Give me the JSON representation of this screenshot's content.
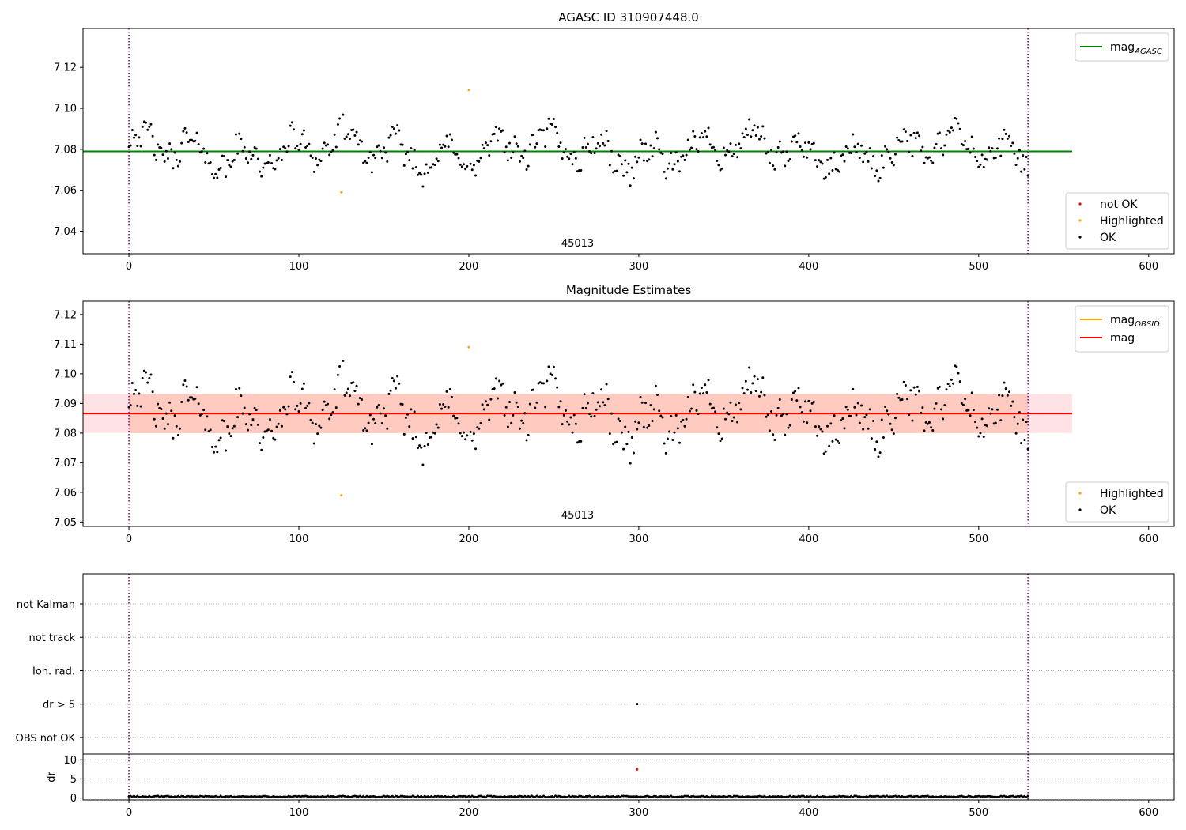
{
  "chart_data": [
    {
      "id": "agasc",
      "type": "scatter",
      "title": "AGASC ID 310907448.0",
      "xlim": [
        -27,
        615
      ],
      "ylim": [
        7.029,
        7.139
      ],
      "xticks": [
        0,
        100,
        200,
        300,
        400,
        500,
        600
      ],
      "yticks": [
        7.04,
        7.06,
        7.08,
        7.1,
        7.12
      ],
      "ytick_labels": [
        "7.04",
        "7.06",
        "7.08",
        "7.10",
        "7.12"
      ],
      "vlines": [
        0,
        529
      ],
      "hlines": [
        {
          "name": "mag",
          "subscript": "AGASC",
          "y": 7.079,
          "x_end": 555,
          "color": "#008000"
        }
      ],
      "annotation": {
        "text": "45013",
        "x": 264,
        "y": 7.0325
      },
      "legend_lines": {
        "position": "top-right",
        "entries": [
          {
            "name": "mag",
            "subscript": "AGASC",
            "color": "#008000"
          }
        ]
      },
      "legend_points": {
        "position": "bottom-right",
        "entries": [
          {
            "name": "not OK",
            "color": "#ff0000"
          },
          {
            "name": "Highlighted",
            "color": "#ffa500"
          },
          {
            "name": "OK",
            "color": "#000000"
          }
        ]
      },
      "highlighted": [
        [
          125,
          7.059
        ],
        [
          200,
          7.109
        ]
      ]
    },
    {
      "id": "mag_est",
      "type": "scatter",
      "title": "Magnitude Estimates",
      "xlim": [
        -27,
        615
      ],
      "ylim": [
        7.0485,
        7.1245
      ],
      "xticks": [
        0,
        100,
        200,
        300,
        400,
        500,
        600
      ],
      "yticks": [
        7.05,
        7.06,
        7.07,
        7.08,
        7.09,
        7.1,
        7.11,
        7.12
      ],
      "ytick_labels": [
        "7.05",
        "7.06",
        "7.07",
        "7.08",
        "7.09",
        "7.10",
        "7.11",
        "7.12"
      ],
      "vlines": [
        0,
        529
      ],
      "bands": [
        {
          "from": 7.08,
          "to": 7.0932,
          "x_start": -27,
          "x_end": 555,
          "color": "#ffb6c1",
          "opacity": 0.4
        },
        {
          "from": 7.08,
          "to": 7.0932,
          "x_start": 0,
          "x_end": 529,
          "color": "#ffa07a",
          "opacity": 0.35
        }
      ],
      "hlines": [
        {
          "name": "mag",
          "subscript": "OBSID",
          "y": 7.0866,
          "x_start": 0,
          "x_end": 529,
          "color": "#ffa500"
        },
        {
          "name": "mag",
          "y": 7.0866,
          "x_start": -27,
          "x_end": 555,
          "color": "#ff0000"
        }
      ],
      "annotation": {
        "text": "45013",
        "x": 264,
        "y": 7.0512
      },
      "legend_lines": {
        "position": "top-right",
        "entries": [
          {
            "name": "mag",
            "subscript": "OBSID",
            "color": "#ffa500"
          },
          {
            "name": "mag",
            "color": "#ff0000"
          }
        ]
      },
      "legend_points": {
        "position": "bottom-right",
        "entries": [
          {
            "name": "Highlighted",
            "color": "#ffa500"
          },
          {
            "name": "OK",
            "color": "#000000"
          }
        ]
      },
      "highlighted": [
        [
          125,
          7.059
        ],
        [
          200,
          7.109
        ]
      ]
    },
    {
      "id": "flags",
      "type": "scatter",
      "xlim": [
        -27,
        615
      ],
      "ylim": [
        -0.5,
        4.9
      ],
      "categories": [
        "OBS not OK",
        "dr > 5",
        "Ion. rad.",
        "not track",
        "not Kalman"
      ],
      "vlines": [
        0,
        529
      ],
      "points": [
        [
          299,
          1
        ]
      ]
    },
    {
      "id": "dr",
      "type": "scatter",
      "ylabel": "dr",
      "xlim": [
        -27,
        615
      ],
      "ylim": [
        -0.5,
        11.5
      ],
      "xticks": [
        0,
        100,
        200,
        300,
        400,
        500,
        600
      ],
      "yticks": [
        0,
        5,
        10
      ],
      "ytick_labels": [
        "0",
        "5",
        "10"
      ],
      "vlines": [
        0,
        529
      ],
      "outliers": [
        [
          299,
          7.5
        ]
      ]
    }
  ],
  "colors": {
    "ok": "#000000",
    "highlighted": "#ffa500",
    "not_ok": "#ff0000",
    "vline": "#800080"
  }
}
